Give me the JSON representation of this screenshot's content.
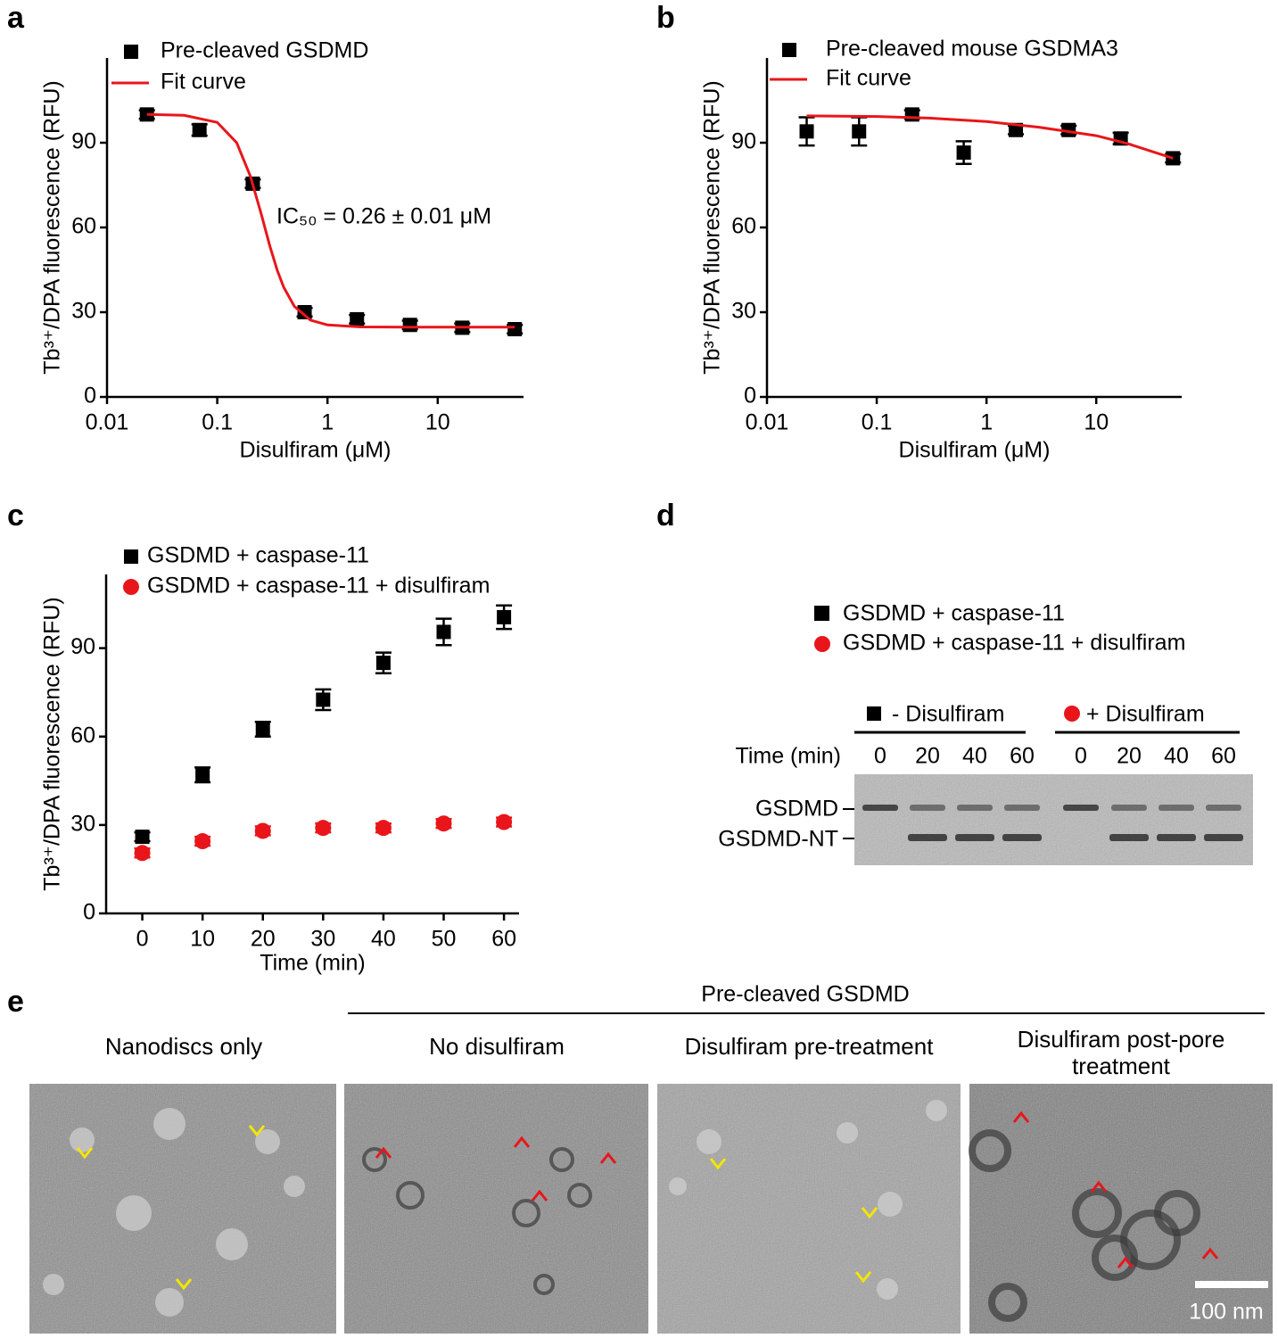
{
  "panel_labels": [
    "a",
    "b",
    "c",
    "d",
    "e"
  ],
  "chart_data": [
    {
      "type": "scatter",
      "xscale": "log",
      "x": [
        0.023,
        0.069,
        0.21,
        0.62,
        1.85,
        5.6,
        16.7,
        50
      ],
      "series": [
        {
          "name": "Pre-cleaved GSDMD",
          "color": "#000000",
          "marker": "square",
          "values": [
            100,
            94.5,
            75.5,
            30,
            27.5,
            25.5,
            24.5,
            24
          ],
          "errors": [
            1.5,
            2,
            1.5,
            1.5,
            1.5,
            1.5,
            1.5,
            1.5
          ]
        },
        {
          "name": "Fit curve",
          "color": "#e8161b",
          "marker": "line",
          "x": [
            0.023,
            0.05,
            0.1,
            0.15,
            0.2,
            0.25,
            0.3,
            0.35,
            0.4,
            0.5,
            0.7,
            1,
            2,
            5,
            10,
            20,
            50
          ],
          "values": [
            100,
            99.7,
            97.2,
            90,
            78.1,
            64.9,
            53.4,
            44.8,
            38.9,
            32.1,
            27.2,
            25.5,
            24.8,
            24.7,
            24.7,
            24.7,
            24.7
          ]
        }
      ],
      "xlabel": "Disulfiram (μM)",
      "ylabel": "Tb³⁺/DPA fluorescence (RFU)",
      "annotation": "IC₅₀ = 0.26 ± 0.01 μM",
      "xlim": [
        0.01,
        60
      ],
      "ylim": [
        0,
        120
      ],
      "xticks": [
        0.01,
        0.1,
        1,
        10
      ],
      "yticks": [
        0,
        30,
        60,
        90
      ]
    },
    {
      "type": "scatter",
      "xscale": "log",
      "x": [
        0.023,
        0.069,
        0.21,
        0.62,
        1.85,
        5.6,
        16.7,
        50
      ],
      "series": [
        {
          "name": "Pre-cleaved mouse GSDMA3",
          "color": "#000000",
          "marker": "square",
          "values": [
            94,
            94,
            100,
            86.5,
            94.5,
            94.5,
            91.5,
            84.5
          ],
          "errors": [
            5,
            5,
            1.5,
            4,
            1.5,
            1.5,
            2,
            1.5
          ]
        },
        {
          "name": "Fit curve",
          "color": "#e8161b",
          "marker": "line",
          "x": [
            0.023,
            0.1,
            0.3,
            1,
            3,
            10,
            20,
            50
          ],
          "values": [
            99.5,
            99.3,
            98.7,
            97.5,
            95.5,
            92.5,
            89.5,
            84.5
          ]
        }
      ],
      "xlabel": "Disulfiram (μM)",
      "ylabel": "Tb³⁺/DPA fluorescence (RFU)",
      "xlim": [
        0.01,
        60
      ],
      "ylim": [
        0,
        120
      ],
      "xticks": [
        0.01,
        0.1,
        1,
        10
      ],
      "yticks": [
        0,
        30,
        60,
        90
      ]
    },
    {
      "type": "scatter",
      "x": [
        0,
        10,
        20,
        30,
        40,
        50,
        60
      ],
      "series": [
        {
          "name": "GSDMD + caspase-11",
          "color": "#000000",
          "marker": "square",
          "values": [
            26,
            47,
            62.5,
            72.5,
            85,
            95.5,
            100.5
          ],
          "errors": [
            1.5,
            2.5,
            2.5,
            3.5,
            3.5,
            4.5,
            4
          ]
        },
        {
          "name": "GSDMD + caspase-11 + disulfiram",
          "color": "#e8161b",
          "marker": "circle",
          "values": [
            20.5,
            24.5,
            28,
            29,
            29,
            30.5,
            31
          ],
          "errors": [
            1.5,
            1.5,
            1.5,
            1.5,
            1.5,
            1.5,
            1.5
          ]
        }
      ],
      "xlabel": "Time (min)",
      "ylabel": "Tb³⁺/DPA fluorescence (RFU)",
      "xlim": [
        -6,
        62.5
      ],
      "ylim": [
        0,
        115
      ],
      "xticks": [
        0,
        10,
        20,
        30,
        40,
        50,
        60
      ],
      "yticks": [
        0,
        30,
        60,
        90
      ]
    }
  ],
  "gel": {
    "legend": [
      "GSDMD + caspase-11",
      "GSDMD + caspase-11 + disulfiram"
    ],
    "groups": [
      "- Disulfiram",
      "+ Disulfiram"
    ],
    "time_label": "Time (min)",
    "lanes": [
      "0",
      "20",
      "40",
      "60",
      "0",
      "20",
      "40",
      "60"
    ],
    "bands": [
      "GSDMD",
      "GSDMD-NT"
    ]
  },
  "micrographs": {
    "group_label": "Pre-cleaved GSDMD",
    "panels": [
      "Nanodiscs only",
      "No disulfiram",
      "Disulfiram pre-treatment",
      "Disulfiram post-pore treatment"
    ],
    "scale_bar": "100 nm"
  }
}
